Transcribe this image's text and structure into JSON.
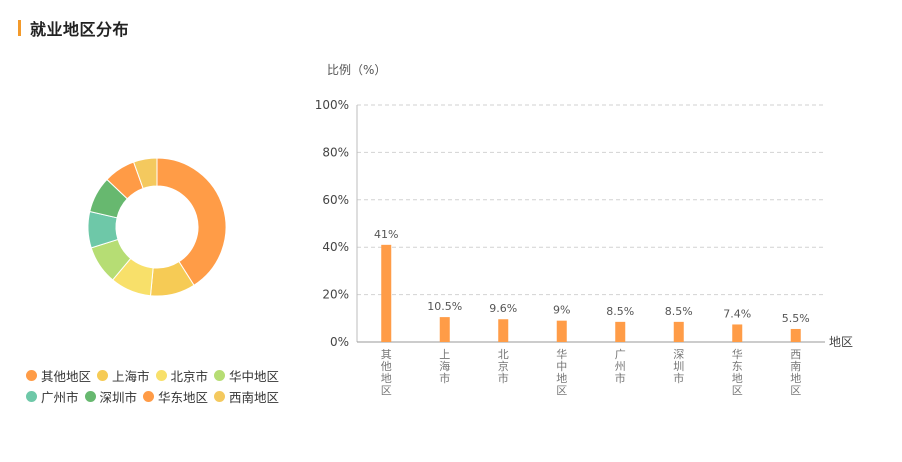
{
  "section": {
    "title": "就业地区分布"
  },
  "colors": {
    "accent": "#f39a2b",
    "bar": "#ff9c47",
    "palette": [
      "#ff9c47",
      "#f6cb55",
      "#f8e06a",
      "#b6dd74",
      "#6ec8a8",
      "#67b86f",
      "#ff9b46",
      "#f4c95e"
    ]
  },
  "legend": {
    "items": [
      "其他地区",
      "上海市",
      "北京市",
      "华中地区",
      "广州市",
      "深圳市",
      "华东地区",
      "西南地区"
    ]
  },
  "chart_data": [
    {
      "type": "pie",
      "style": "donut",
      "categories": [
        "其他地区",
        "上海市",
        "北京市",
        "华中地区",
        "广州市",
        "深圳市",
        "华东地区",
        "西南地区"
      ],
      "values": [
        41,
        10.5,
        9.6,
        9,
        8.5,
        8.5,
        7.4,
        5.5
      ],
      "legend_position": "bottom-left"
    },
    {
      "type": "bar",
      "categories": [
        "其他地区",
        "上海市",
        "北京市",
        "华中地区",
        "广州市",
        "深圳市",
        "华东地区",
        "西南地区"
      ],
      "values": [
        41,
        10.5,
        9.6,
        9,
        8.5,
        8.5,
        7.4,
        5.5
      ],
      "data_labels": [
        "41%",
        "10.5%",
        "9.6%",
        "9%",
        "8.5%",
        "8.5%",
        "7.4%",
        "5.5%"
      ],
      "ylabel": "比例（%）",
      "xlabel": "地区",
      "ylim": [
        0,
        100
      ],
      "yticks": [
        "0%",
        "20%",
        "40%",
        "60%",
        "80%",
        "100%"
      ],
      "grid": true
    }
  ]
}
